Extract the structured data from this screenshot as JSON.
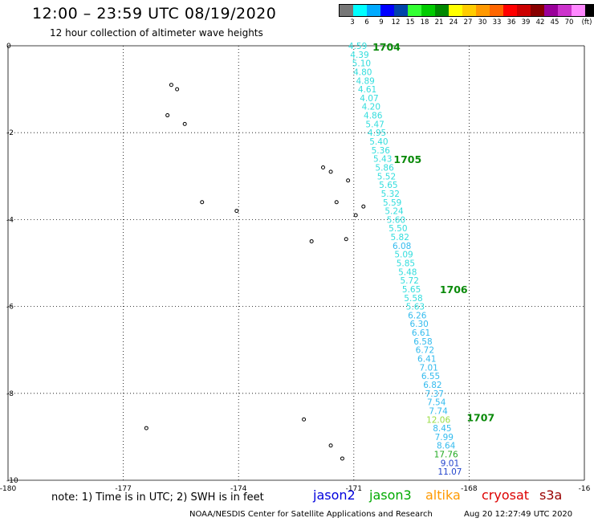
{
  "header": {
    "title": "12:00 – 23:59 UTC 08/19/2020",
    "subtitle": "12 hour collection of altimeter wave heights"
  },
  "legend": {
    "unit": "(ft)",
    "colors": [
      "#777777",
      "#00ffff",
      "#00aaff",
      "#0000ff",
      "#0044aa",
      "#33ff33",
      "#00cc00",
      "#008800",
      "#ffff00",
      "#ffcc00",
      "#ff9900",
      "#ff6600",
      "#ff0000",
      "#cc0000",
      "#880000",
      "#990099",
      "#cc33cc",
      "#ff88ff",
      "#000000"
    ],
    "ticks": [
      "3",
      "6",
      "9",
      "12",
      "15",
      "18",
      "21",
      "24",
      "27",
      "30",
      "33",
      "36",
      "39",
      "42",
      "45",
      "70"
    ]
  },
  "axes": {
    "x_ticks": [
      "-180",
      "-177",
      "-174",
      "-171",
      "-168",
      "-16"
    ],
    "y_ticks": [
      "0",
      "-2",
      "-4",
      "-6",
      "-8",
      "-10"
    ],
    "lon_range": [
      -180,
      -165
    ],
    "lat_range": [
      -10,
      0
    ]
  },
  "passes": [
    {
      "id": "1704",
      "lat": -0.02,
      "lon": -170.15
    },
    {
      "id": "1705",
      "lat": -2.61,
      "lon": -169.6
    },
    {
      "id": "1706",
      "lat": -5.6,
      "lon": -168.4
    },
    {
      "id": "1707",
      "lat": -8.55,
      "lon": -167.7
    }
  ],
  "wave_heights": [
    {
      "value": "4.59",
      "lon": -170.9,
      "lat": 0.0,
      "color": "#33dddd"
    },
    {
      "value": "4.39",
      "lon": -170.85,
      "lat": -0.2,
      "color": "#33dddd"
    },
    {
      "value": "5.10",
      "lon": -170.8,
      "lat": -0.4,
      "color": "#33dddd"
    },
    {
      "value": "4.80",
      "lon": -170.77,
      "lat": -0.6,
      "color": "#33dddd"
    },
    {
      "value": "4.89",
      "lon": -170.7,
      "lat": -0.8,
      "color": "#33dddd"
    },
    {
      "value": "4.61",
      "lon": -170.65,
      "lat": -1.0,
      "color": "#33dddd"
    },
    {
      "value": "4.07",
      "lon": -170.6,
      "lat": -1.2,
      "color": "#33dddd"
    },
    {
      "value": "4.20",
      "lon": -170.55,
      "lat": -1.4,
      "color": "#33dddd"
    },
    {
      "value": "4.86",
      "lon": -170.5,
      "lat": -1.6,
      "color": "#33dddd"
    },
    {
      "value": "5.47",
      "lon": -170.45,
      "lat": -1.8,
      "color": "#33dddd"
    },
    {
      "value": "4.95",
      "lon": -170.4,
      "lat": -2.0,
      "color": "#33dddd"
    },
    {
      "value": "5.40",
      "lon": -170.35,
      "lat": -2.2,
      "color": "#33dddd"
    },
    {
      "value": "5.36",
      "lon": -170.3,
      "lat": -2.4,
      "color": "#33dddd"
    },
    {
      "value": "5.43",
      "lon": -170.25,
      "lat": -2.6,
      "color": "#33dddd"
    },
    {
      "value": "5.86",
      "lon": -170.2,
      "lat": -2.8,
      "color": "#33dddd"
    },
    {
      "value": "5.52",
      "lon": -170.15,
      "lat": -3.0,
      "color": "#33dddd"
    },
    {
      "value": "5.65",
      "lon": -170.1,
      "lat": -3.2,
      "color": "#33dddd"
    },
    {
      "value": "5.32",
      "lon": -170.05,
      "lat": -3.4,
      "color": "#33dddd"
    },
    {
      "value": "5.59",
      "lon": -170.0,
      "lat": -3.6,
      "color": "#33dddd"
    },
    {
      "value": "5.24",
      "lon": -169.95,
      "lat": -3.8,
      "color": "#33dddd"
    },
    {
      "value": "5.60",
      "lon": -169.9,
      "lat": -4.0,
      "color": "#33dddd"
    },
    {
      "value": "5.50",
      "lon": -169.85,
      "lat": -4.2,
      "color": "#33dddd"
    },
    {
      "value": "5.82",
      "lon": -169.8,
      "lat": -4.4,
      "color": "#33dddd"
    },
    {
      "value": "6.08",
      "lon": -169.75,
      "lat": -4.6,
      "color": "#33bbee"
    },
    {
      "value": "5.09",
      "lon": -169.7,
      "lat": -4.8,
      "color": "#33dddd"
    },
    {
      "value": "5.85",
      "lon": -169.65,
      "lat": -5.0,
      "color": "#33dddd"
    },
    {
      "value": "5.48",
      "lon": -169.6,
      "lat": -5.2,
      "color": "#33dddd"
    },
    {
      "value": "5.72",
      "lon": -169.55,
      "lat": -5.4,
      "color": "#33dddd"
    },
    {
      "value": "5.65",
      "lon": -169.5,
      "lat": -5.6,
      "color": "#33dddd"
    },
    {
      "value": "5.58",
      "lon": -169.45,
      "lat": -5.8,
      "color": "#33dddd"
    },
    {
      "value": "5.63",
      "lon": -169.4,
      "lat": -6.0,
      "color": "#33dddd"
    },
    {
      "value": "6.26",
      "lon": -169.35,
      "lat": -6.2,
      "color": "#33bbee"
    },
    {
      "value": "6.30",
      "lon": -169.3,
      "lat": -6.4,
      "color": "#33bbee"
    },
    {
      "value": "6.61",
      "lon": -169.25,
      "lat": -6.6,
      "color": "#33bbee"
    },
    {
      "value": "6.58",
      "lon": -169.2,
      "lat": -6.8,
      "color": "#33bbee"
    },
    {
      "value": "6.72",
      "lon": -169.15,
      "lat": -7.0,
      "color": "#33bbee"
    },
    {
      "value": "6.41",
      "lon": -169.1,
      "lat": -7.2,
      "color": "#33bbee"
    },
    {
      "value": "7.01",
      "lon": -169.05,
      "lat": -7.4,
      "color": "#33bbee"
    },
    {
      "value": "6.55",
      "lon": -169.0,
      "lat": -7.6,
      "color": "#33bbee"
    },
    {
      "value": "6.82",
      "lon": -168.95,
      "lat": -7.8,
      "color": "#33bbee"
    },
    {
      "value": "7.37",
      "lon": -168.9,
      "lat": -8.0,
      "color": "#33bbee"
    },
    {
      "value": "7.54",
      "lon": -168.85,
      "lat": -8.2,
      "color": "#33bbee"
    },
    {
      "value": "7.74",
      "lon": -168.8,
      "lat": -8.4,
      "color": "#33bbee"
    },
    {
      "value": "12.06",
      "lon": -168.8,
      "lat": -8.6,
      "color": "#99dd44"
    },
    {
      "value": "8.45",
      "lon": -168.7,
      "lat": -8.8,
      "color": "#33bbee"
    },
    {
      "value": "7.99",
      "lon": -168.65,
      "lat": -9.0,
      "color": "#33bbee"
    },
    {
      "value": "8.64",
      "lon": -168.6,
      "lat": -9.2,
      "color": "#33bbee"
    },
    {
      "value": "17.76",
      "lon": -168.6,
      "lat": -9.4,
      "color": "#22aa22"
    },
    {
      "value": "9.01",
      "lon": -168.5,
      "lat": -9.6,
      "color": "#2244cc"
    },
    {
      "value": "11.07",
      "lon": -168.5,
      "lat": -9.8,
      "color": "#2244cc"
    }
  ],
  "islands": [
    {
      "name": "island",
      "lon": -175.75,
      "lat": -0.9
    },
    {
      "name": "island",
      "lon": -175.6,
      "lat": -1.0
    },
    {
      "name": "island",
      "lon": -175.85,
      "lat": -1.6
    },
    {
      "name": "island",
      "lon": -175.4,
      "lat": -1.8
    },
    {
      "name": "island",
      "lon": -171.8,
      "lat": -2.8
    },
    {
      "name": "island",
      "lon": -171.6,
      "lat": -2.9
    },
    {
      "name": "island",
      "lon": -171.15,
      "lat": -3.1
    },
    {
      "name": "island",
      "lon": -171.45,
      "lat": -3.6
    },
    {
      "name": "island",
      "lon": -170.75,
      "lat": -3.7
    },
    {
      "name": "island",
      "lon": -174.95,
      "lat": -3.6
    },
    {
      "name": "island",
      "lon": -174.05,
      "lat": -3.8
    },
    {
      "name": "island",
      "lon": -170.95,
      "lat": -3.9
    },
    {
      "name": "island",
      "lon": -172.1,
      "lat": -4.5
    },
    {
      "name": "island",
      "lon": -171.2,
      "lat": -4.45
    },
    {
      "name": "island",
      "lon": -176.4,
      "lat": -8.8
    },
    {
      "name": "island",
      "lon": -172.3,
      "lat": -8.6
    },
    {
      "name": "island",
      "lon": -171.6,
      "lat": -9.2
    },
    {
      "name": "island",
      "lon": -171.3,
      "lat": -9.5
    }
  ],
  "note": "note: 1) Time is in UTC; 2) SWH is in feet",
  "satellites": [
    {
      "name": "jason2",
      "color": "#0000dd"
    },
    {
      "name": "jason3",
      "color": "#00aa00"
    },
    {
      "name": "altika",
      "color": "#ff9900"
    },
    {
      "name": "cryosat",
      "color": "#dd0000"
    },
    {
      "name": "s3a",
      "color": "#990000"
    }
  ],
  "footer": {
    "agency": "NOAA/NESDIS Center for Satellite Applications and Research",
    "timestamp": "Aug 20 12:27:49 UTC 2020"
  }
}
